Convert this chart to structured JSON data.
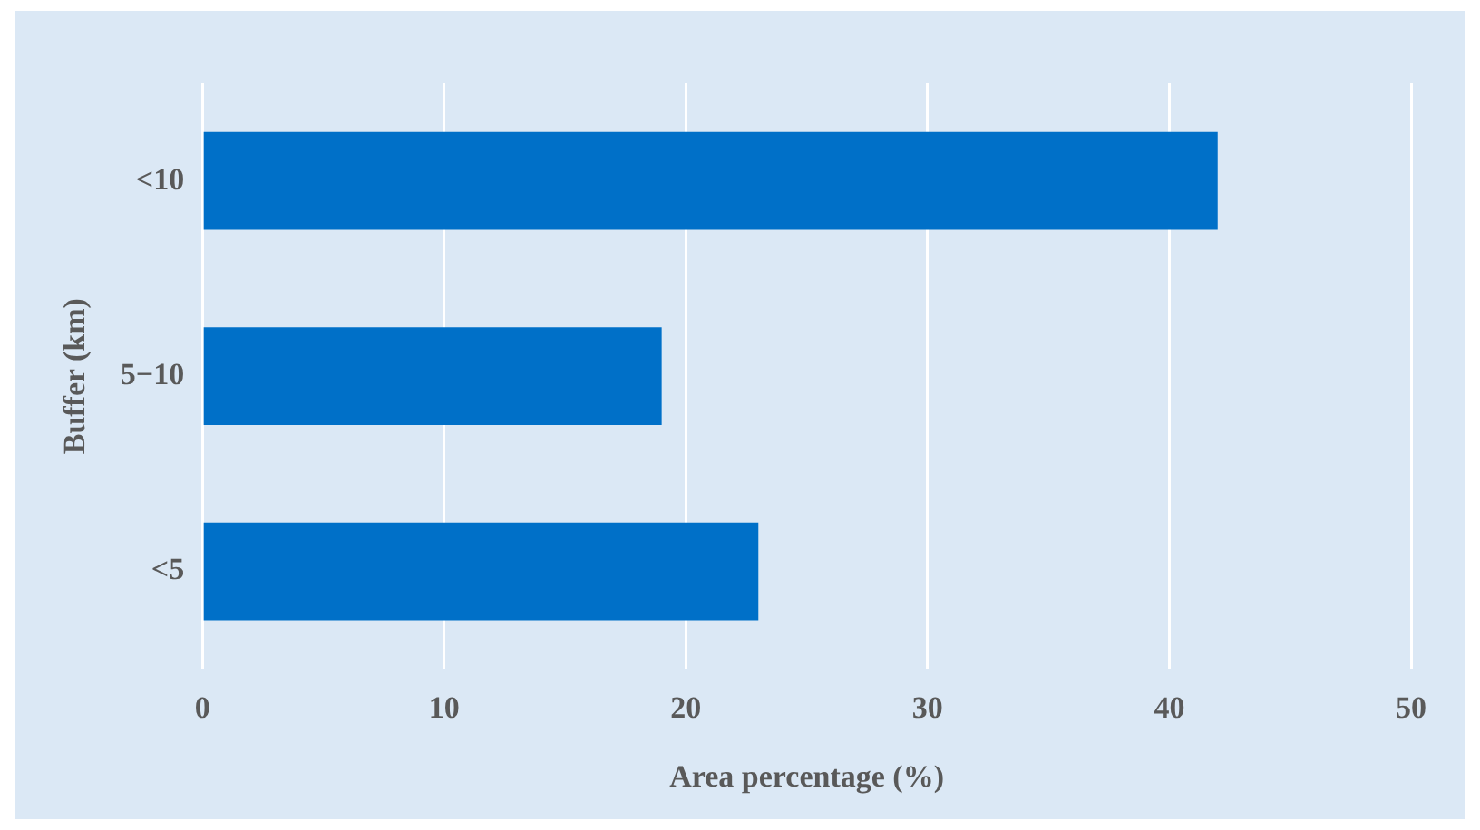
{
  "chart_data": {
    "type": "bar",
    "orientation": "horizontal",
    "categories": [
      "<10",
      "5−10",
      "<5"
    ],
    "values": [
      42,
      19,
      23
    ],
    "color": "#0070c8",
    "xlim": [
      0,
      50
    ],
    "xticks": [
      0,
      10,
      20,
      30,
      40,
      50
    ],
    "xlabel": "Area percentage (%)",
    "ylabel": "Buffer (km)",
    "grid": "x",
    "legend": false
  }
}
